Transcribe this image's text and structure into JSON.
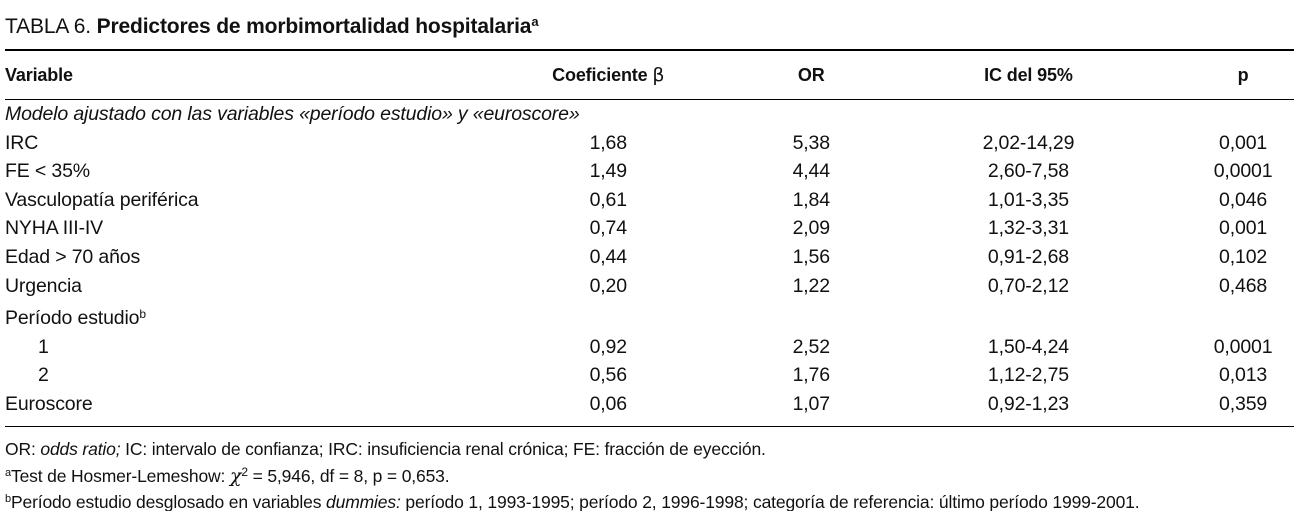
{
  "title": {
    "label": "TABLA 6.",
    "text": " Predictores de morbimortalidad hospitalaria",
    "marker": "a"
  },
  "table": {
    "header": {
      "variable": "Variable",
      "coef": "Coeficiente ",
      "coef_symbol": "β",
      "or": "OR",
      "ic": "IC del 95%",
      "p": "p"
    },
    "rows": [
      {
        "variable": "Modelo ajustado con las variables «período estudio» y «euroscore»"
      },
      {
        "variable": "IRC",
        "coef": "1,68",
        "or": "5,38",
        "ic": "2,02-14,29",
        "p": "0,001"
      },
      {
        "variable": "FE < 35%",
        "coef": "1,49",
        "or": "4,44",
        "ic": "2,60-7,58",
        "p": "0,0001"
      },
      {
        "variable": "Vasculopatía periférica",
        "coef": "0,61",
        "or": "1,84",
        "ic": "1,01-3,35",
        "p": "0,046"
      },
      {
        "variable": "NYHA III-IV",
        "coef": "0,74",
        "or": "2,09",
        "ic": "1,32-3,31",
        "p": "0,001"
      },
      {
        "variable": "Edad > 70 años",
        "coef": "0,44",
        "or": "1,56",
        "ic": "0,91-2,68",
        "p": "0,102"
      },
      {
        "variable": "Urgencia",
        "coef": "0,20",
        "or": "1,22",
        "ic": "0,70-2,12",
        "p": "0,468"
      },
      {
        "variable": "Período estudio",
        "marker": "b"
      },
      {
        "variable": "1",
        "coef": "0,92",
        "or": "2,52",
        "ic": "1,50-4,24",
        "p": "0,0001"
      },
      {
        "variable": "2",
        "coef": "0,56",
        "or": "1,76",
        "ic": "1,12-2,75",
        "p": "0,013"
      },
      {
        "variable": "Euroscore",
        "coef": "0,06",
        "or": "1,07",
        "ic": "0,92-1,23",
        "p": "0,359"
      }
    ]
  },
  "footnotes": {
    "fn1": {
      "pre": "OR: ",
      "italic": "odds ratio;",
      "post": " IC: intervalo de confianza; IRC: insuficiencia renal crónica; FE: fracción de eyección."
    },
    "fn2": {
      "marker": "a",
      "pre": "Test de Hosmer-Lemeshow: ",
      "chi": "χ",
      "chi_sup": "2",
      "post": " = 5,946, df = 8, p = 0,653."
    },
    "fn3": {
      "marker": "b",
      "pre": "Período estudio desglosado en variables ",
      "italic": "dummies:",
      "post": " período 1, 1993-1995; período 2, 1996-1998; categoría de referencia: último período 1999-2001."
    }
  }
}
